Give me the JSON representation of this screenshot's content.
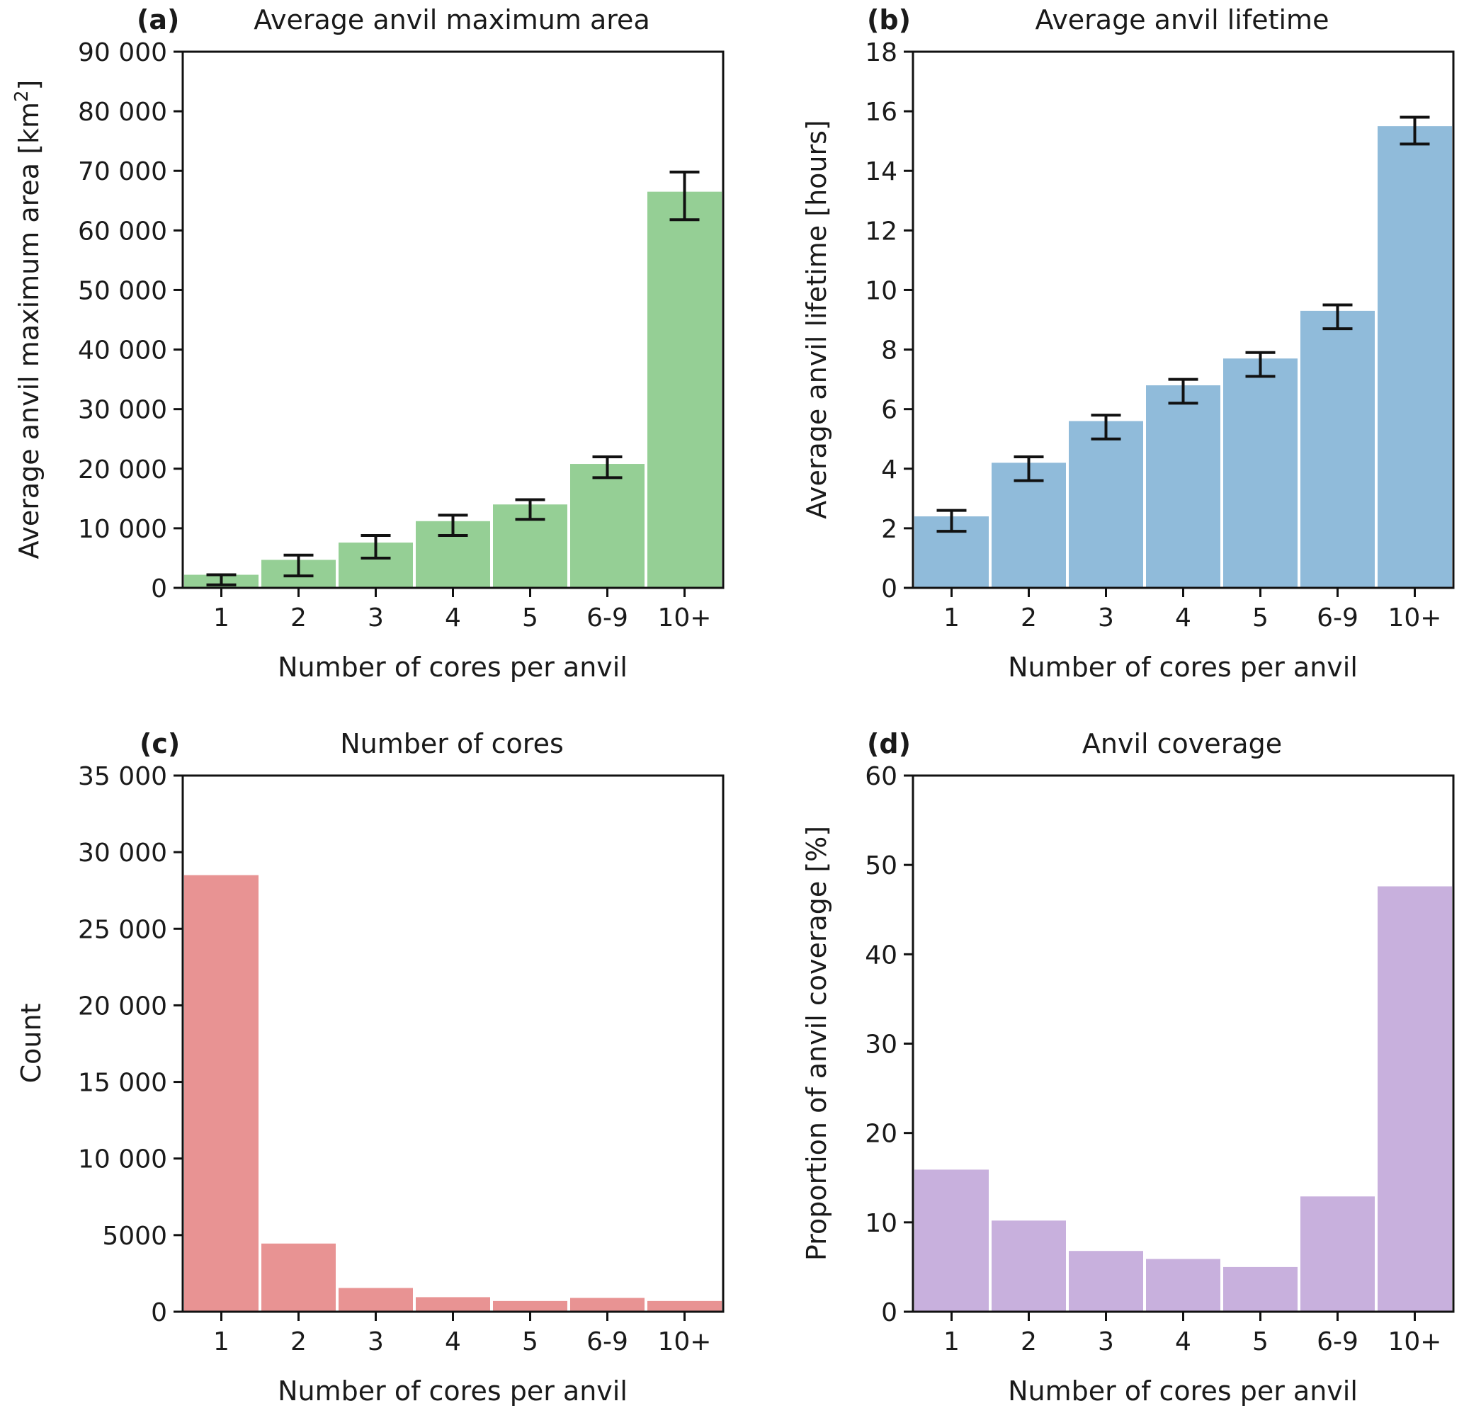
{
  "chart_data": [
    {
      "panel": "(a)",
      "type": "bar",
      "title": "Average anvil maximum area",
      "xlabel": "Number of cores per anvil",
      "ylabel_main": "Average anvil maximum area [km",
      "ylabel_sup": "2",
      "ylabel_end": "]",
      "categories": [
        "1",
        "2",
        "3",
        "4",
        "5",
        "6-9",
        "10+"
      ],
      "values": [
        2200,
        4700,
        7600,
        11200,
        14000,
        20800,
        66500
      ],
      "errors": [
        {
          "low": 500,
          "high": 2200
        },
        {
          "low": 2000,
          "high": 5500
        },
        {
          "low": 5000,
          "high": 8800
        },
        {
          "low": 8800,
          "high": 12200
        },
        {
          "low": 11500,
          "high": 14800
        },
        {
          "low": 18500,
          "high": 22000
        },
        {
          "low": 61800,
          "high": 69800
        }
      ],
      "ylim": [
        0,
        90000
      ],
      "yticks": [
        0,
        10000,
        20000,
        30000,
        40000,
        50000,
        60000,
        70000,
        80000,
        90000
      ],
      "ytick_labels": [
        "0",
        "10 000",
        "20 000",
        "30 000",
        "40 000",
        "50 000",
        "60 000",
        "70 000",
        "80 000",
        "90 000"
      ],
      "color": "#95cf95"
    },
    {
      "panel": "(b)",
      "type": "bar",
      "title": "Average anvil lifetime",
      "xlabel": "Number of cores per anvil",
      "ylabel_main": "Average anvil lifetime [hours]",
      "ylabel_sup": "",
      "ylabel_end": "",
      "categories": [
        "1",
        "2",
        "3",
        "4",
        "5",
        "6-9",
        "10+"
      ],
      "values": [
        2.4,
        4.2,
        5.6,
        6.8,
        7.7,
        9.3,
        15.5
      ],
      "errors": [
        {
          "low": 1.9,
          "high": 2.6
        },
        {
          "low": 3.6,
          "high": 4.4
        },
        {
          "low": 5.0,
          "high": 5.8
        },
        {
          "low": 6.2,
          "high": 7.0
        },
        {
          "low": 7.1,
          "high": 7.9
        },
        {
          "low": 8.7,
          "high": 9.5
        },
        {
          "low": 14.9,
          "high": 15.8
        }
      ],
      "ylim": [
        0,
        18
      ],
      "yticks": [
        0,
        2,
        4,
        6,
        8,
        10,
        12,
        14,
        16,
        18
      ],
      "ytick_labels": [
        "0",
        "2",
        "4",
        "6",
        "8",
        "10",
        "12",
        "14",
        "16",
        "18"
      ],
      "color": "#90bbda"
    },
    {
      "panel": "(c)",
      "type": "bar",
      "title": "Number of cores",
      "xlabel": "Number of cores per anvil",
      "ylabel_main": "Count",
      "ylabel_sup": "",
      "ylabel_end": "",
      "categories": [
        "1",
        "2",
        "3",
        "4",
        "5",
        "6-9",
        "10+"
      ],
      "values": [
        28500,
        4450,
        1550,
        950,
        700,
        900,
        700
      ],
      "errors": [],
      "ylim": [
        0,
        35000
      ],
      "yticks": [
        0,
        5000,
        10000,
        15000,
        20000,
        25000,
        30000,
        35000
      ],
      "ytick_labels": [
        "0",
        "5000",
        "10 000",
        "15 000",
        "20 000",
        "25 000",
        "30 000",
        "35 000"
      ],
      "color": "#e89393"
    },
    {
      "panel": "(d)",
      "type": "bar",
      "title": "Anvil coverage",
      "xlabel": "Number of cores per anvil",
      "ylabel_main": "Proportion of anvil coverage [%]",
      "ylabel_sup": "",
      "ylabel_end": "",
      "categories": [
        "1",
        "2",
        "3",
        "4",
        "5",
        "6-9",
        "10+"
      ],
      "values": [
        15.9,
        10.2,
        6.8,
        5.9,
        5.0,
        12.9,
        47.6
      ],
      "errors": [],
      "ylim": [
        0,
        60
      ],
      "yticks": [
        0,
        10,
        20,
        30,
        40,
        50,
        60
      ],
      "ytick_labels": [
        "0",
        "10",
        "20",
        "30",
        "40",
        "50",
        "60"
      ],
      "color": "#c8b0dd"
    }
  ]
}
